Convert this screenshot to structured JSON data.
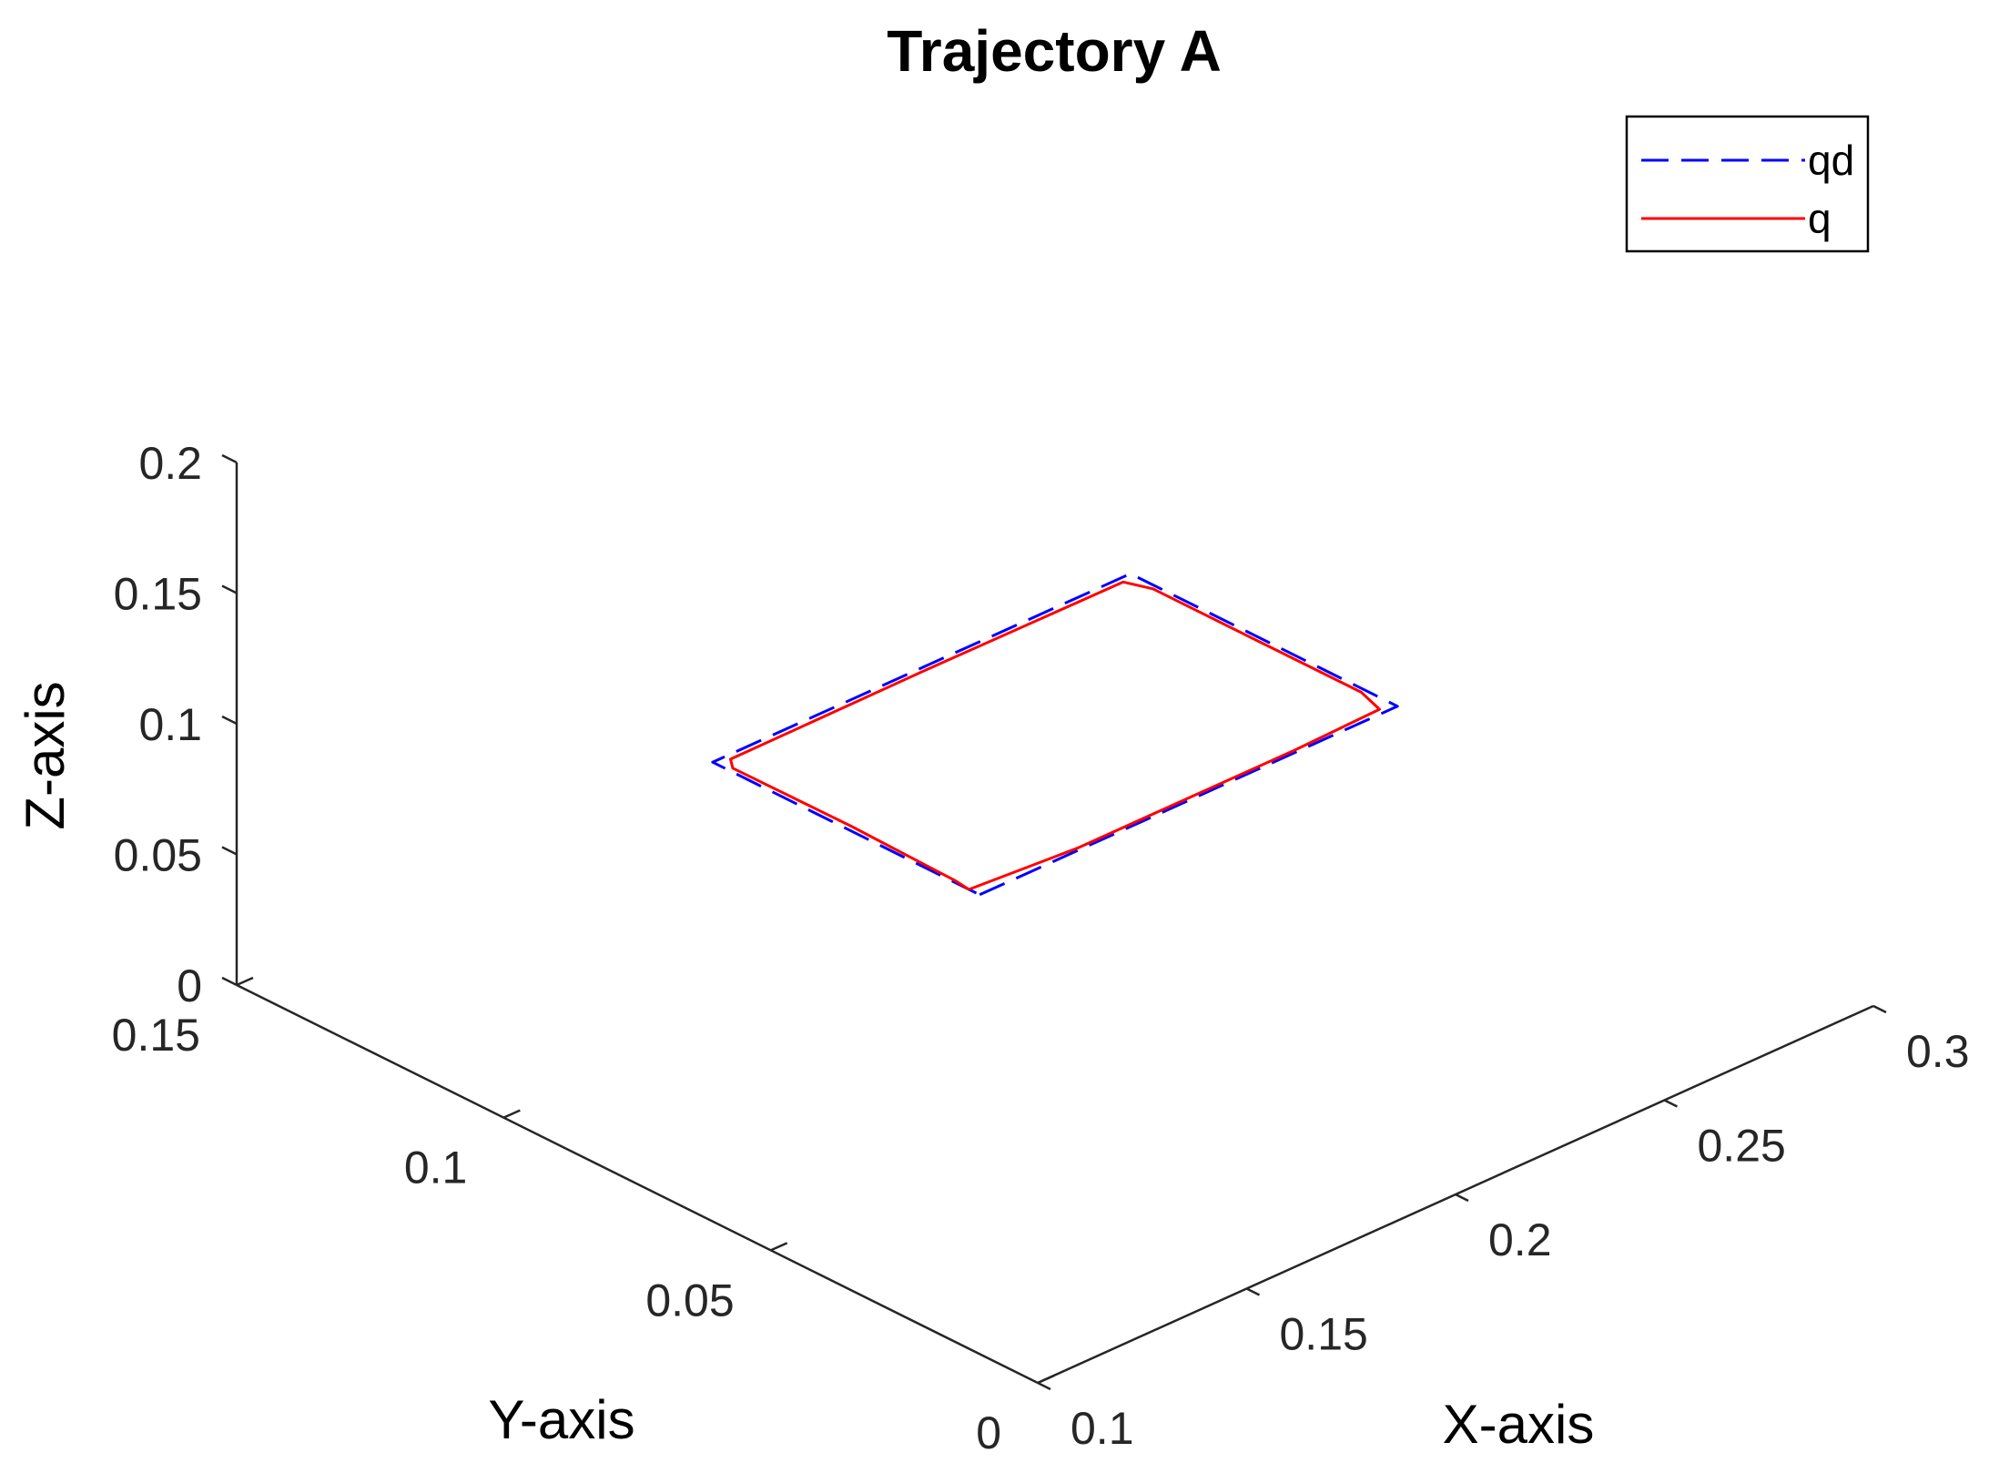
{
  "chart_data": {
    "type": "line",
    "title": "Trajectory A",
    "xlabel": "X-axis",
    "ylabel": "Y-axis",
    "zlabel": "Z-axis",
    "xlim": [
      0.1,
      0.3
    ],
    "ylim": [
      0,
      0.15
    ],
    "zlim": [
      0,
      0.2
    ],
    "x_ticks": [
      "0.1",
      "0.15",
      "0.2",
      "0.25",
      "0.3"
    ],
    "y_ticks": [
      "0",
      "0.05",
      "0.1",
      "0.15"
    ],
    "z_ticks": [
      "0",
      "0.05",
      "0.1",
      "0.15",
      "0.2"
    ],
    "grid": false,
    "legend_position": "top-right",
    "series": [
      {
        "name": "qd",
        "color": "#0000ff",
        "style": "dashed",
        "points": [
          {
            "x": 0.15,
            "y": 0.05,
            "z": 0.1
          },
          {
            "x": 0.25,
            "y": 0.05,
            "z": 0.1
          },
          {
            "x": 0.25,
            "y": 0.1,
            "z": 0.1
          },
          {
            "x": 0.15,
            "y": 0.1,
            "z": 0.1
          },
          {
            "x": 0.15,
            "y": 0.05,
            "z": 0.1
          }
        ]
      },
      {
        "name": "q",
        "color": "#ff0000",
        "style": "solid",
        "points": [
          {
            "x": 0.15,
            "y": 0.052,
            "z": 0.1
          },
          {
            "x": 0.174,
            "y": 0.0505,
            "z": 0.1
          },
          {
            "x": 0.2,
            "y": 0.0505,
            "z": 0.1
          },
          {
            "x": 0.226,
            "y": 0.0505,
            "z": 0.1
          },
          {
            "x": 0.247,
            "y": 0.051,
            "z": 0.1
          },
          {
            "x": 0.249,
            "y": 0.056,
            "z": 0.1
          },
          {
            "x": 0.249,
            "y": 0.075,
            "z": 0.1
          },
          {
            "x": 0.249,
            "y": 0.095,
            "z": 0.1
          },
          {
            "x": 0.247,
            "y": 0.099,
            "z": 0.1
          },
          {
            "x": 0.2,
            "y": 0.0992,
            "z": 0.1
          },
          {
            "x": 0.153,
            "y": 0.099,
            "z": 0.1
          },
          {
            "x": 0.151,
            "y": 0.097,
            "z": 0.1
          },
          {
            "x": 0.1512,
            "y": 0.075,
            "z": 0.1
          },
          {
            "x": 0.1505,
            "y": 0.055,
            "z": 0.1
          },
          {
            "x": 0.15,
            "y": 0.052,
            "z": 0.1
          }
        ]
      }
    ]
  }
}
